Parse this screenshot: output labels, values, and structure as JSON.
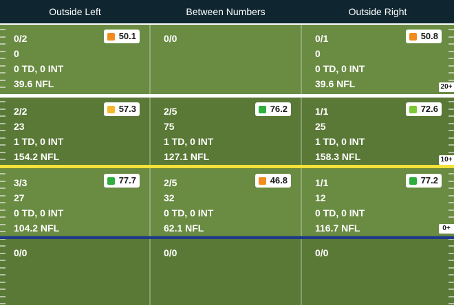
{
  "columns": [
    "Outside Left",
    "Between Numbers",
    "Outside Right"
  ],
  "zones": [
    {
      "cells": [
        {
          "comp": "0/2",
          "yards": "0",
          "tds": "0 TD, 0 INT",
          "rating": "39.6 NFL",
          "grade": "50.1",
          "grade_color": "#f28c1f"
        },
        {
          "comp": "0/0"
        },
        {
          "comp": "0/1",
          "yards": "0",
          "tds": "0 TD, 0 INT",
          "rating": "39.6 NFL",
          "grade": "50.8",
          "grade_color": "#f28c1f"
        }
      ],
      "tag": "20+"
    },
    {
      "cells": [
        {
          "comp": "2/2",
          "yards": "23",
          "tds": "1 TD, 0 INT",
          "rating": "154.2 NFL",
          "grade": "57.3",
          "grade_color": "#f5b82e"
        },
        {
          "comp": "2/5",
          "yards": "75",
          "tds": "1 TD, 0 INT",
          "rating": "127.1 NFL",
          "grade": "76.2",
          "grade_color": "#2fae3c"
        },
        {
          "comp": "1/1",
          "yards": "25",
          "tds": "1 TD, 0 INT",
          "rating": "158.3 NFL",
          "grade": "72.6",
          "grade_color": "#7cc934"
        }
      ],
      "tag": "10+"
    },
    {
      "cells": [
        {
          "comp": "3/3",
          "yards": "27",
          "tds": "0 TD, 0 INT",
          "rating": "104.2 NFL",
          "grade": "77.7",
          "grade_color": "#2fae3c"
        },
        {
          "comp": "2/5",
          "yards": "32",
          "tds": "0 TD, 0 INT",
          "rating": "62.1 NFL",
          "grade": "46.8",
          "grade_color": "#f28c1f"
        },
        {
          "comp": "1/1",
          "yards": "12",
          "tds": "0 TD, 0 INT",
          "rating": "116.7 NFL",
          "grade": "77.2",
          "grade_color": "#2fae3c"
        }
      ],
      "tag": "0+"
    },
    {
      "cells": [
        {
          "comp": "0/0"
        },
        {
          "comp": "0/0"
        },
        {
          "comp": "0/0"
        }
      ],
      "tag": ""
    }
  ],
  "line_colors": {
    "zone_divider": "#ffffff",
    "first_down_line": "#f2e23a",
    "line_of_scrimmage": "#1e3a8a"
  }
}
